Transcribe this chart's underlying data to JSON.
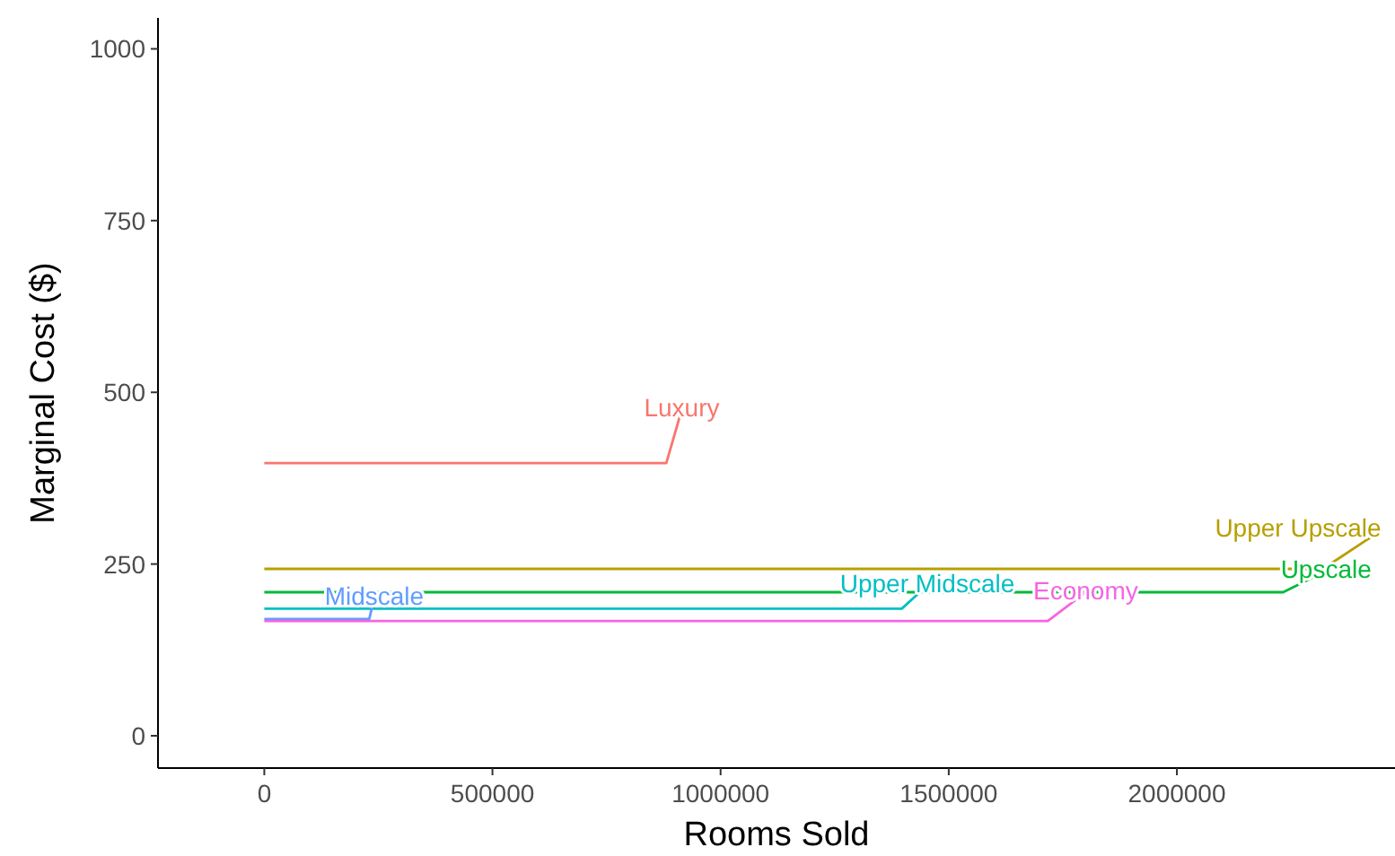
{
  "chart_data": {
    "type": "line",
    "xlabel": "Rooms Sold",
    "ylabel": "Marginal Cost ($)",
    "xlim": [
      -233000,
      2478000
    ],
    "ylim": [
      -47,
      1045
    ],
    "xticks": [
      0,
      500000,
      1000000,
      1500000,
      2000000
    ],
    "yticks": [
      0,
      250,
      500,
      750,
      1000
    ],
    "grid": false,
    "series": [
      {
        "name": "Luxury",
        "color": "#f8766d",
        "x": [
          0,
          881000,
          915000
        ],
        "values": [
          397,
          397,
          475
        ]
      },
      {
        "name": "Upper Upscale",
        "color": "#b79f00",
        "x": [
          0,
          2320000,
          2450000
        ],
        "values": [
          243,
          243,
          300
        ]
      },
      {
        "name": "Upscale",
        "color": "#00ba38",
        "x": [
          0,
          2233000,
          2327000
        ],
        "values": [
          209,
          209,
          240
        ]
      },
      {
        "name": "Upper Midscale",
        "color": "#00bfc4",
        "x": [
          0,
          1397000,
          1453000
        ],
        "values": [
          185,
          185,
          219
        ]
      },
      {
        "name": "Midscale",
        "color": "#619cff",
        "x": [
          0,
          230000,
          241000
        ],
        "values": [
          170,
          170,
          201
        ]
      },
      {
        "name": "Economy",
        "color": "#f564e3",
        "x": [
          0,
          1717000,
          1800000
        ],
        "values": [
          167,
          167,
          209
        ]
      }
    ]
  }
}
